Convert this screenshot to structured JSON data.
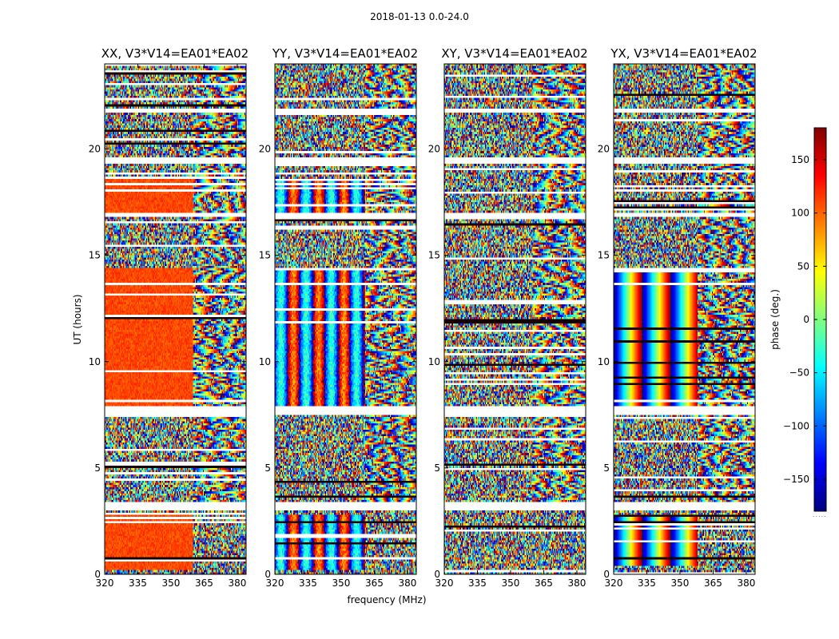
{
  "chart_data": {
    "type": "heatmap",
    "suptitle": "2018-01-13 0.0-24.0",
    "ylabel": "UT (hours)",
    "xlabel": "frequency (MHz)",
    "ylim": [
      0,
      24
    ],
    "xlim": [
      320,
      384
    ],
    "yticks": [
      "0",
      "5",
      "10",
      "15",
      "20"
    ],
    "xticks": [
      "320",
      "335",
      "350",
      "365",
      "380"
    ],
    "colormap": "jet",
    "colorbar": {
      "label": "phase (deg.)",
      "range": [
        -180,
        180
      ],
      "ticks": [
        "−150",
        "−100",
        "−50",
        "0",
        "50",
        "100",
        "150"
      ]
    },
    "panels": [
      {
        "title": "XX, V3*V14=EA01*EA02",
        "coherent_ut": [
          [
            0.2,
            2.8
          ],
          [
            7.9,
            14.4
          ],
          [
            17.0,
            18.6
          ]
        ],
        "coherent_freq_max": 360,
        "coherent_phase": 110,
        "fringe_mode": "solid"
      },
      {
        "title": "YY, V3*V14=EA01*EA02",
        "coherent_ut": [
          [
            0.2,
            2.8
          ],
          [
            7.9,
            14.4
          ],
          [
            17.0,
            18.6
          ]
        ],
        "coherent_freq_max": 361,
        "coherent_phase": -150,
        "fringe_mode": "bands"
      },
      {
        "title": "XY, V3*V14=EA01*EA02",
        "coherent_ut": [],
        "coherent_freq_max": 360,
        "coherent_phase": 0,
        "fringe_mode": "noise"
      },
      {
        "title": "YX, V3*V14=EA01*EA02",
        "coherent_ut": [
          [
            7.9,
            14.4
          ],
          [
            0.4,
            2.8
          ]
        ],
        "coherent_freq_max": 358,
        "coherent_phase": 0,
        "fringe_mode": "stripes"
      }
    ],
    "flagged_ut": [
      [
        3.0,
        3.4
      ],
      [
        7.5,
        7.9
      ],
      [
        19.3,
        19.6
      ],
      [
        21.7,
        21.9
      ],
      [
        16.8,
        17.0
      ]
    ]
  }
}
